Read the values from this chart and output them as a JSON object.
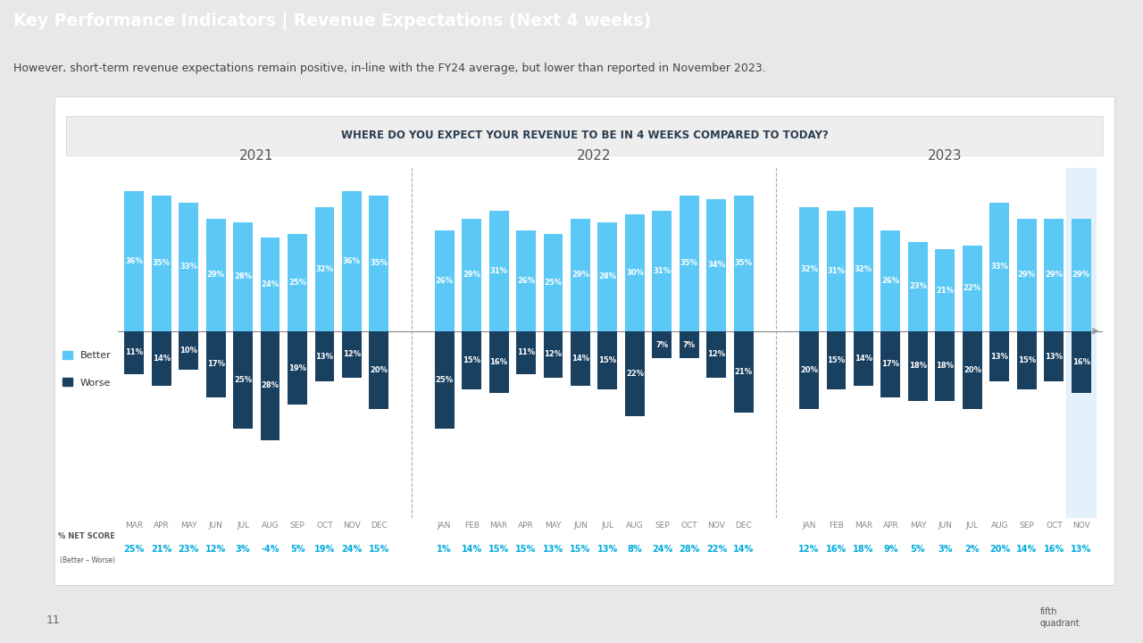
{
  "title_bar": "Key Performance Indicators | Revenue Expectations (Next 4 weeks)",
  "subtitle": "However, short-term revenue expectations remain positive, in-line with the FY24 average, but lower than reported in November 2023.",
  "chart_question": "WHERE DO YOU EXPECT YOUR REVENUE TO BE IN 4 WEEKS COMPARED TO TODAY?",
  "title_bar_bg": "#1b4f72",
  "subtitle_bg": "#d9d9d9",
  "page_bg": "#e8e8e8",
  "chart_box_bg": "#ffffff",
  "years": [
    "2021",
    "2022",
    "2023"
  ],
  "months_2021": [
    "MAR",
    "APR",
    "MAY",
    "JUN",
    "JUL",
    "AUG",
    "SEP",
    "OCT",
    "NOV",
    "DEC"
  ],
  "months_2022": [
    "JAN",
    "FEB",
    "MAR",
    "APR",
    "MAY",
    "JUN",
    "JUL",
    "AUG",
    "SEP",
    "OCT",
    "NOV",
    "DEC"
  ],
  "months_2023": [
    "JAN",
    "FEB",
    "MAR",
    "APR",
    "MAY",
    "JUN",
    "JUL",
    "AUG",
    "SEP",
    "OCT",
    "NOV"
  ],
  "better_2021": [
    36,
    35,
    33,
    29,
    28,
    24,
    25,
    32,
    36,
    35
  ],
  "better_2022": [
    26,
    29,
    31,
    26,
    25,
    29,
    28,
    30,
    31,
    35,
    34,
    35
  ],
  "better_2023": [
    32,
    31,
    32,
    26,
    23,
    21,
    22,
    33,
    29,
    29,
    29
  ],
  "worse_2021": [
    11,
    14,
    10,
    17,
    25,
    28,
    19,
    13,
    12,
    20
  ],
  "worse_2022": [
    25,
    15,
    16,
    11,
    12,
    14,
    15,
    22,
    7,
    7,
    12,
    21
  ],
  "worse_2023": [
    20,
    15,
    14,
    17,
    18,
    18,
    20,
    13,
    15,
    13,
    16
  ],
  "net_2021": [
    25,
    21,
    23,
    12,
    3,
    -4,
    5,
    19,
    24,
    15
  ],
  "net_2022": [
    1,
    14,
    15,
    15,
    13,
    15,
    13,
    8,
    24,
    28,
    22,
    14
  ],
  "net_2023": [
    12,
    16,
    18,
    9,
    5,
    3,
    2,
    20,
    14,
    16,
    13
  ],
  "better_color": "#5bc8f5",
  "worse_color": "#1a4060",
  "last_bar_bg": "#dff0fa",
  "net_score_color": "#00aadd",
  "divider_color": "#aaaaaa",
  "zero_line_color": "#888888",
  "year_label_color": "#555555",
  "month_label_color": "#888888"
}
